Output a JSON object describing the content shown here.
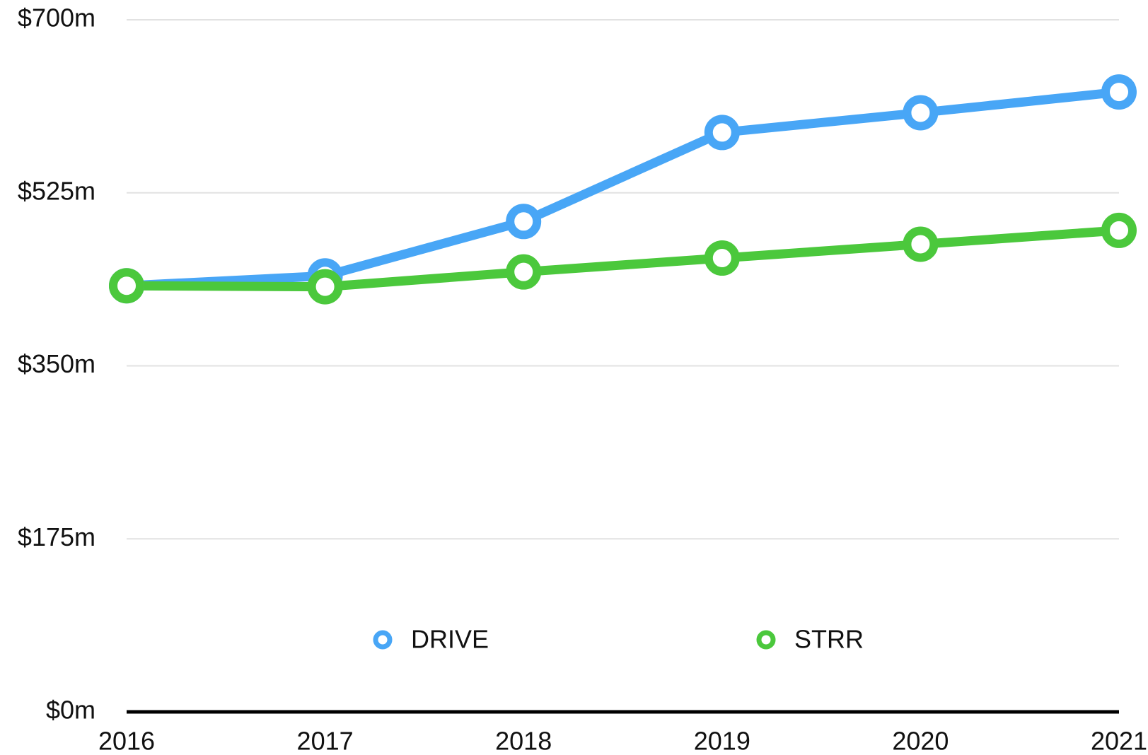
{
  "chart_data": {
    "type": "line",
    "categories": [
      "2016",
      "2017",
      "2018",
      "2019",
      "2020",
      "2021"
    ],
    "series": [
      {
        "name": "DRIVE",
        "color": "#48a6f6",
        "values": [
          431,
          441,
          496,
          586,
          606,
          627
        ]
      },
      {
        "name": "STRR",
        "color": "#4bc83c",
        "values": [
          431,
          430,
          445,
          459,
          473,
          487
        ]
      }
    ],
    "ylim": [
      0,
      700
    ],
    "yticks": [
      {
        "value": 0,
        "label": "$0m"
      },
      {
        "value": 175,
        "label": "$175m"
      },
      {
        "value": 350,
        "label": "$350m"
      },
      {
        "value": 525,
        "label": "$525m"
      },
      {
        "value": 700,
        "label": "$700m"
      }
    ],
    "grid": true,
    "legend": "bottom"
  }
}
